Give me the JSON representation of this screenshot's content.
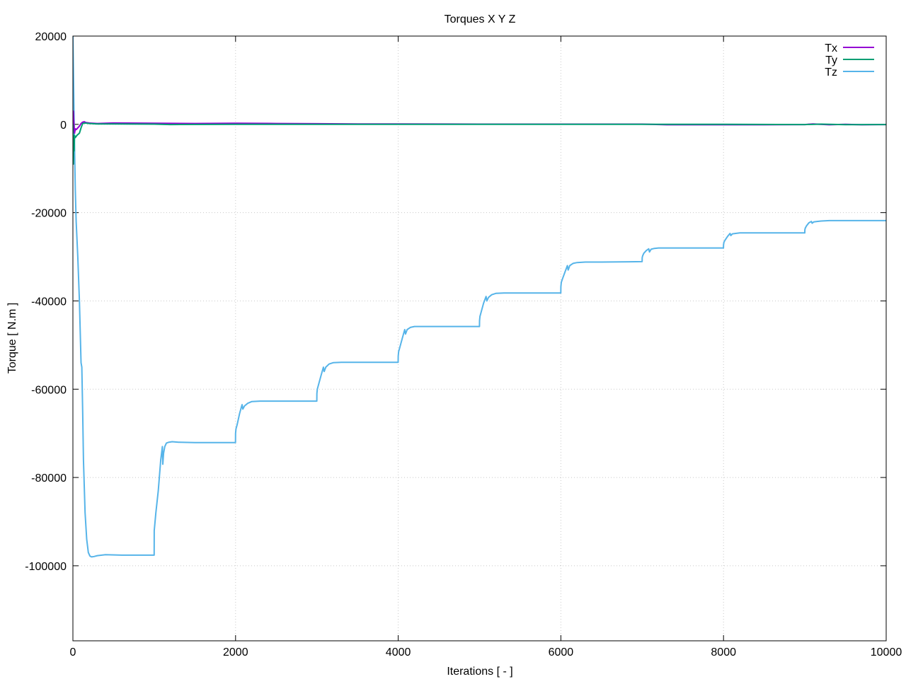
{
  "chart_data": {
    "type": "line",
    "title": "Torques X Y Z",
    "xlabel": "Iterations [ - ]",
    "ylabel": "Torque [ N.m ]",
    "xlim": [
      0,
      10000
    ],
    "ylim": [
      -117000,
      20000
    ],
    "xticks": [
      0,
      2000,
      4000,
      6000,
      8000,
      10000
    ],
    "yticks": [
      20000,
      0,
      -20000,
      -40000,
      -60000,
      -80000,
      -100000
    ],
    "grid": true,
    "legend_position": "top-right",
    "series": [
      {
        "name": "Tx",
        "color": "#9400d3",
        "x": [
          0,
          5,
          10,
          20,
          30,
          40,
          60,
          80,
          100,
          120,
          140,
          160,
          200,
          300,
          500,
          1000,
          1500,
          2000,
          2500,
          3000,
          3500,
          4000,
          5000,
          6000,
          7000,
          7300,
          8000,
          8500,
          9000,
          9100,
          9300,
          9500,
          9700,
          9900,
          10000
        ],
        "y": [
          0,
          3000,
          1000,
          -2000,
          -1000,
          -1200,
          -800,
          -400,
          200,
          500,
          600,
          400,
          300,
          200,
          300,
          250,
          200,
          250,
          200,
          150,
          100,
          100,
          50,
          50,
          50,
          -100,
          -100,
          -100,
          -50,
          100,
          -100,
          0,
          -100,
          -50,
          -50
        ]
      },
      {
        "name": "Ty",
        "color": "#009e73",
        "x": [
          0,
          5,
          10,
          15,
          20,
          30,
          50,
          80,
          100,
          120,
          150,
          200,
          300,
          500,
          1000,
          1200,
          2000,
          3000,
          4000,
          5000,
          6000,
          7000,
          8000,
          9000,
          9200,
          9500,
          9800,
          10000
        ],
        "y": [
          0,
          -9000,
          -3000,
          -6000,
          -2500,
          -3000,
          -2500,
          -2000,
          -800,
          200,
          300,
          200,
          100,
          100,
          50,
          -50,
          0,
          0,
          0,
          0,
          0,
          0,
          0,
          -50,
          50,
          -80,
          -50,
          -50
        ]
      },
      {
        "name": "Tz",
        "color": "#56b4e9",
        "x": [
          0,
          10,
          20,
          30,
          40,
          60,
          80,
          100,
          110,
          120,
          130,
          150,
          170,
          190,
          210,
          230,
          260,
          300,
          400,
          600,
          800,
          999,
          1000,
          1005,
          1020,
          1050,
          1080,
          1100,
          1105,
          1115,
          1130,
          1150,
          1180,
          1220,
          1300,
          1500,
          1999,
          2000,
          2005,
          2020,
          2050,
          2080,
          2090,
          2110,
          2150,
          2200,
          2300,
          2500,
          2999,
          3000,
          3005,
          3020,
          3050,
          3080,
          3090,
          3110,
          3150,
          3200,
          3300,
          3500,
          3999,
          4000,
          4005,
          4020,
          4050,
          4080,
          4090,
          4110,
          4150,
          4200,
          4300,
          4500,
          4999,
          5000,
          5005,
          5020,
          5050,
          5080,
          5090,
          5110,
          5150,
          5200,
          5300,
          5500,
          5999,
          6000,
          6005,
          6020,
          6050,
          6080,
          6090,
          6110,
          6150,
          6200,
          6300,
          6500,
          6999,
          7000,
          7005,
          7020,
          7050,
          7080,
          7090,
          7110,
          7150,
          7200,
          7300,
          7500,
          7999,
          8000,
          8005,
          8020,
          8050,
          8080,
          8090,
          8110,
          8150,
          8200,
          8300,
          8500,
          8999,
          9000,
          9005,
          9020,
          9050,
          9080,
          9090,
          9110,
          9150,
          9200,
          9300,
          9500,
          10000
        ],
        "y": [
          20000,
          8000,
          -5000,
          -15000,
          -22000,
          -30000,
          -40000,
          -54000,
          -55000,
          -65000,
          -76000,
          -88000,
          -94000,
          -97000,
          -97800,
          -98000,
          -97900,
          -97700,
          -97500,
          -97600,
          -97600,
          -97600,
          -92000,
          -91000,
          -88000,
          -83000,
          -76000,
          -73000,
          -77000,
          -74500,
          -73000,
          -72200,
          -72000,
          -71900,
          -72000,
          -72100,
          -72100,
          -70000,
          -69000,
          -68000,
          -65500,
          -63500,
          -64500,
          -63800,
          -63200,
          -62800,
          -62700,
          -62700,
          -62700,
          -61000,
          -60000,
          -59000,
          -57000,
          -55000,
          -56000,
          -55000,
          -54300,
          -54000,
          -53900,
          -53900,
          -53900,
          -52500,
          -51500,
          -50500,
          -48500,
          -46500,
          -47500,
          -46500,
          -46000,
          -45800,
          -45800,
          -45800,
          -45800,
          -44500,
          -43500,
          -42500,
          -40500,
          -39000,
          -40000,
          -39200,
          -38600,
          -38300,
          -38200,
          -38200,
          -38200,
          -36800,
          -35800,
          -35000,
          -33500,
          -32000,
          -33000,
          -32000,
          -31500,
          -31300,
          -31200,
          -31200,
          -31100,
          -30200,
          -29800,
          -29200,
          -28600,
          -28200,
          -28900,
          -28300,
          -28100,
          -28000,
          -28000,
          -28000,
          -28000,
          -27300,
          -26700,
          -26200,
          -25400,
          -24700,
          -25200,
          -24800,
          -24700,
          -24600,
          -24600,
          -24600,
          -24600,
          -23900,
          -23500,
          -23000,
          -22300,
          -22000,
          -22400,
          -22100,
          -22000,
          -21900,
          -21800,
          -21800,
          -21800
        ]
      }
    ]
  }
}
